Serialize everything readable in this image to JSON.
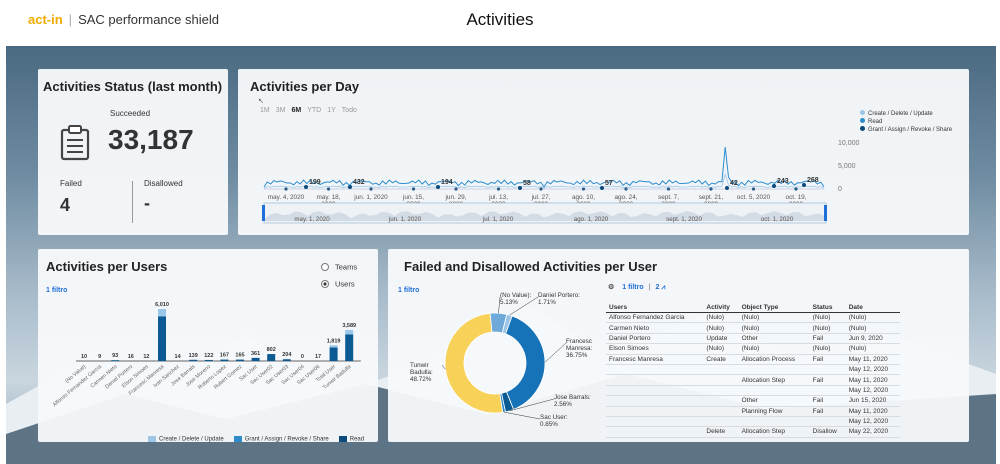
{
  "header": {
    "brand": "act-in",
    "product": "SAC performance shield",
    "title": "Activities"
  },
  "status_card": {
    "title": "Activities Status (last month)",
    "succeeded_label": "Succeeded",
    "succeeded_value": "33,187",
    "failed_label": "Failed",
    "failed_value": "4",
    "disallowed_label": "Disallowed",
    "disallowed_value": "-"
  },
  "per_day": {
    "title": "Activities per Day",
    "ranges": [
      "1M",
      "3M",
      "6M",
      "YTD",
      "1Y",
      "Todo"
    ],
    "active_range": "6M",
    "legend": [
      "Create / Delete / Update",
      "Read",
      "Grant / Assign / Revoke / Share"
    ],
    "colors": {
      "cdu": "#9cc7e8",
      "read": "#2e8ccb",
      "grant": "#0b4a7a"
    },
    "x_labels": [
      "may. 4, 2020",
      "may. 18, 2020",
      "jun. 1, 2020",
      "jun. 15, 2020",
      "jun. 29, 2020",
      "jul. 13, 2020",
      "jul. 27, 2020",
      "ago. 10, 2020",
      "ago. 24, 2020",
      "sept. 7, 2020",
      "sept. 21, 2020",
      "oct. 5, 2020",
      "oct. 19, 2020"
    ],
    "y_ticks": [
      "10,000",
      "5,000",
      "0"
    ],
    "annotations": [
      "199",
      "432",
      "194",
      "58",
      "57",
      "42",
      "243",
      "268"
    ],
    "nav_labels": [
      "may. 1, 2020",
      "jun. 1, 2020",
      "jul. 1, 2020",
      "ago. 1, 2020",
      "sept. 1, 2020",
      "oct. 1, 2020"
    ]
  },
  "per_users": {
    "title": "Activities per Users",
    "filter": "1 filtro",
    "radio_options": [
      "Teams",
      "Users"
    ],
    "selected": "Users",
    "legend": [
      "Create / Delete / Update",
      "Grant / Assign / Revoke / Share",
      "Read"
    ],
    "chart_data": {
      "type": "bar",
      "categories": [
        "(No Value)",
        "Alfonso Fernandez Garcia",
        "Carmen Nieto",
        "Daniel Portero",
        "Elson Simoes",
        "Francesc Manresa",
        "Ivan Sanchez",
        "Jose Barrals",
        "Jose Moreno",
        "Roberto Lopez",
        "Rubert Gomez",
        "Sac User",
        "Sac User02",
        "Sac User03",
        "Sac User04",
        "Sac User06",
        "Tctal User",
        "Tunwir Badulla"
      ],
      "values": [
        10,
        9,
        93,
        16,
        12,
        6010,
        14,
        139,
        122,
        167,
        165,
        361,
        802,
        204,
        0,
        17,
        1819,
        3589
      ],
      "labels": [
        "10",
        "9",
        "93",
        "16",
        "12",
        "6,010",
        "14",
        "139",
        "122",
        "167",
        "165",
        "361",
        "802",
        "204",
        "0",
        "17",
        "1,819",
        "3,589"
      ]
    }
  },
  "failed_per_user": {
    "title": "Failed and Disallowed Activities per User",
    "filter": "1 filtro",
    "table_toolbar": [
      "1 filtro",
      "2"
    ],
    "chart_data": {
      "type": "pie",
      "slices": [
        {
          "name": "(No Value)",
          "value": 5.13,
          "label": "(No Value):\n5.13%",
          "color": "#6ea9da"
        },
        {
          "name": "Daniel Portero",
          "value": 1.71,
          "label": "Daniel Portero:\n1.71%",
          "color": "#9cc4e6"
        },
        {
          "name": "Francesc Manresa",
          "value": 36.75,
          "label": "Francesc\nManresa:\n36.75%",
          "color": "#1673b8"
        },
        {
          "name": "Jose Barrals",
          "value": 2.56,
          "label": "Jose Barrals:\n2.56%",
          "color": "#0a5a94"
        },
        {
          "name": "Sac User",
          "value": 0.85,
          "label": "Sac User:\n0.85%",
          "color": "#2b85c6"
        },
        {
          "name": "Tunwir Badulla",
          "value": 48.72,
          "label": "Tunwir\nBadulla:\n48.72%",
          "color": "#f8d159"
        }
      ]
    },
    "table": {
      "headers": [
        "Users",
        "Activity",
        "Object Type",
        "Status",
        "Date"
      ],
      "rows": [
        [
          "Alfonso Fernandez Garcia",
          "(Nulo)",
          "(Nulo)",
          "(Nulo)",
          "(Nulo)"
        ],
        [
          "Carmen Nieto",
          "(Nulo)",
          "(Nulo)",
          "(Nulo)",
          "(Nulo)"
        ],
        [
          "Daniel Portero",
          "Update",
          "Other",
          "Fail",
          "Jun 9, 2020"
        ],
        [
          "Elson Simoes",
          "(Nulo)",
          "(Nulo)",
          "(Nulo)",
          "(Nulo)"
        ],
        [
          "Francesc Manresa",
          "Create",
          "Allocation Process",
          "Fail",
          "May 11, 2020"
        ],
        [
          "",
          "",
          "",
          "",
          "May 12, 2020"
        ],
        [
          "",
          "",
          "Allocation Step",
          "Fail",
          "May 11, 2020"
        ],
        [
          "",
          "",
          "",
          "",
          "May 12, 2020"
        ],
        [
          "",
          "",
          "Other",
          "Fail",
          "Jun 15, 2020"
        ],
        [
          "",
          "",
          "Planning Flow",
          "Fail",
          "May 11, 2020"
        ],
        [
          "",
          "",
          "",
          "",
          "May 12, 2020"
        ],
        [
          "",
          "Delete",
          "Allocation Step",
          "Disallow",
          "May 22, 2020"
        ]
      ]
    }
  }
}
